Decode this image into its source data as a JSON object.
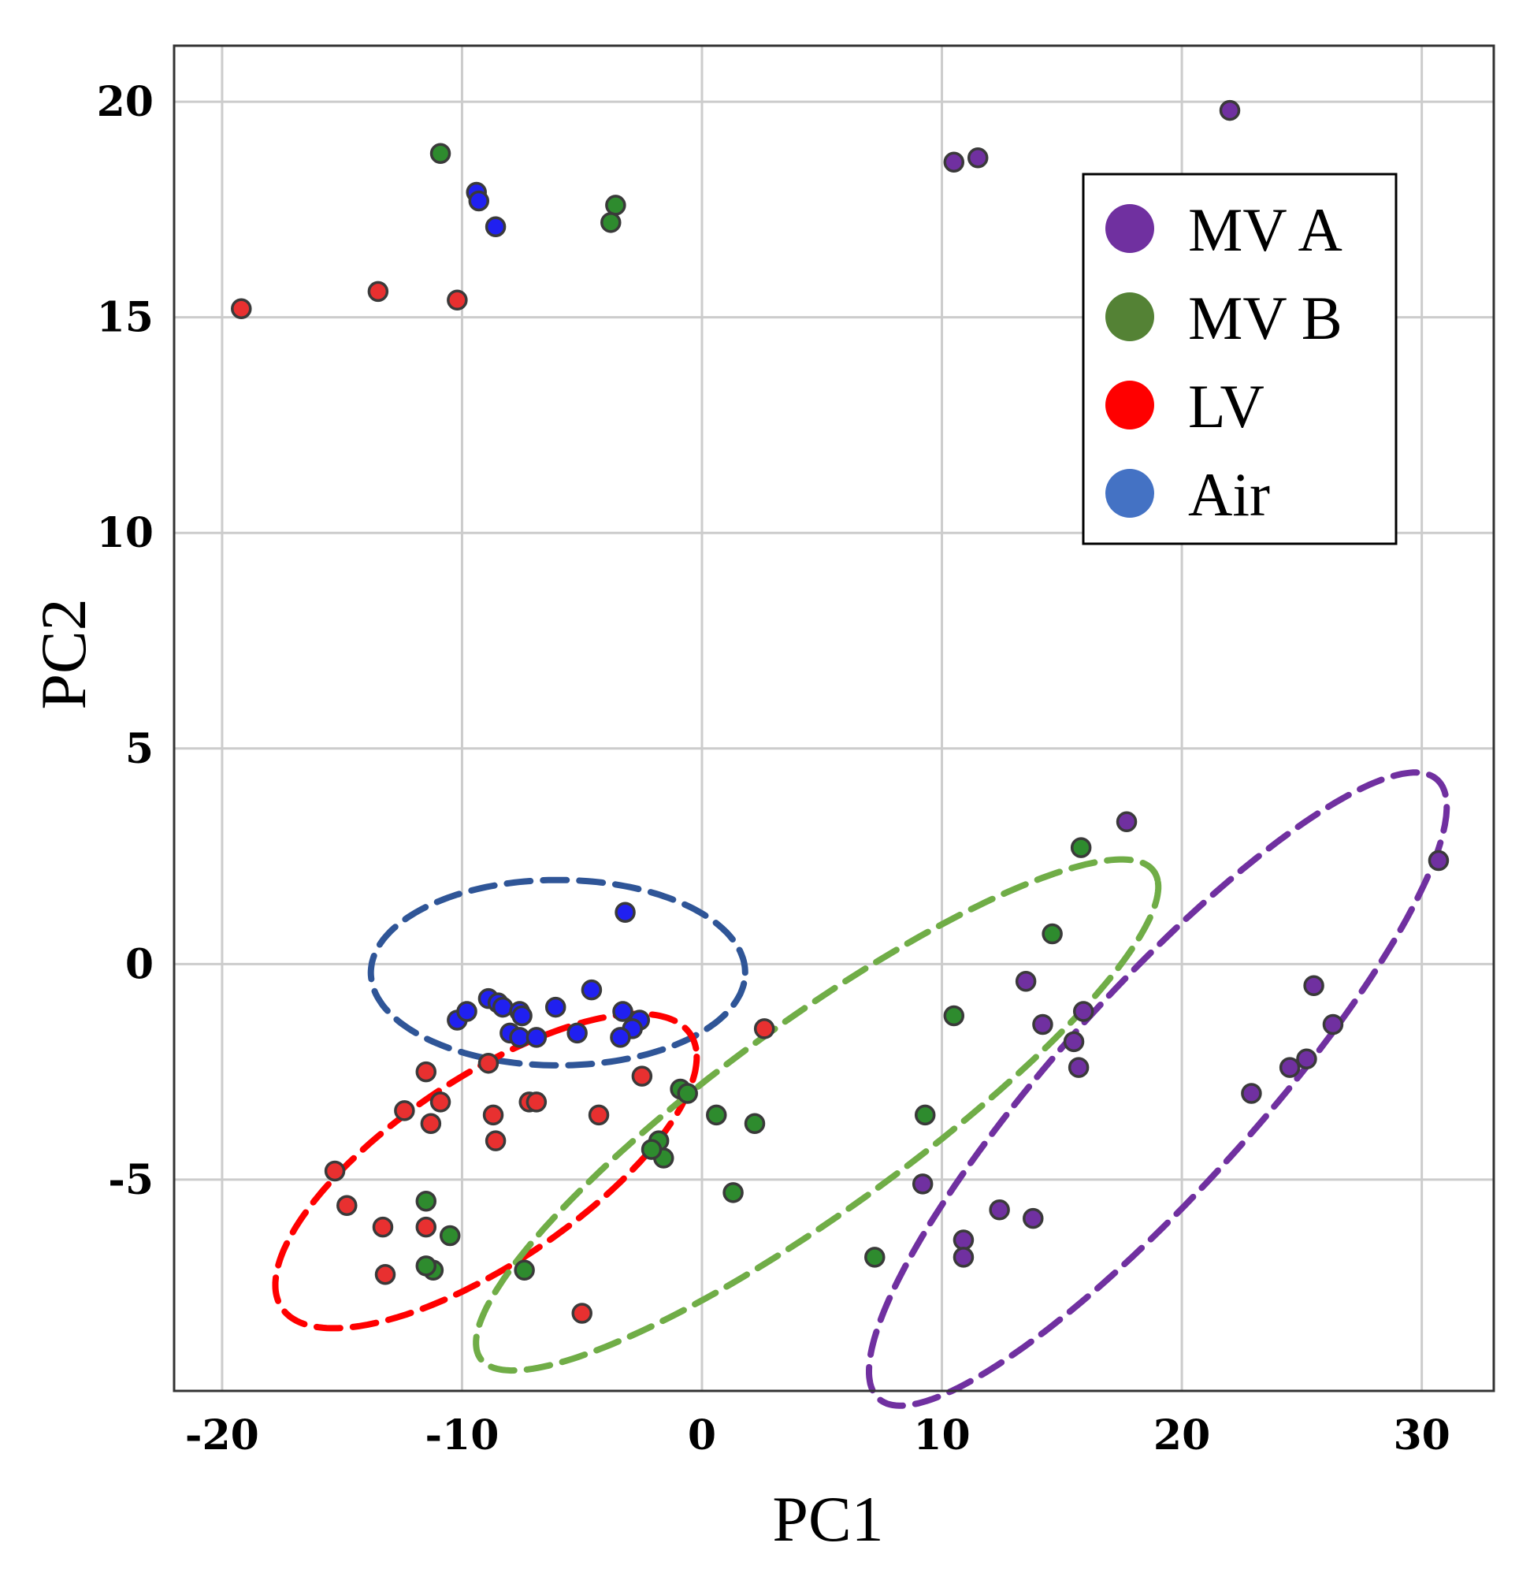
{
  "chart_data": {
    "type": "scatter",
    "title": "",
    "xlabel": "PC1",
    "ylabel": "PC2",
    "xlim": [
      -22,
      33
    ],
    "ylim": [
      -9.9,
      21.3
    ],
    "xticks": [
      -20,
      -10,
      0,
      10,
      20,
      30
    ],
    "yticks": [
      -5,
      0,
      5,
      10,
      15,
      20
    ],
    "grid": true,
    "legend_position": "top-right",
    "series": [
      {
        "name": "MV A",
        "color": "#7030a0",
        "legend_color": "#7030a0",
        "points": [
          [
            10.5,
            18.6
          ],
          [
            11.5,
            18.7
          ],
          [
            22,
            19.8
          ],
          [
            17.7,
            3.3
          ],
          [
            30.7,
            2.4
          ],
          [
            13.5,
            -0.4
          ],
          [
            14.2,
            -1.4
          ],
          [
            15.9,
            -1.1
          ],
          [
            15.5,
            -1.8
          ],
          [
            15.7,
            -2.4
          ],
          [
            25.5,
            -0.5
          ],
          [
            26.3,
            -1.4
          ],
          [
            25.2,
            -2.2
          ],
          [
            24.5,
            -2.4
          ],
          [
            22.9,
            -3.0
          ],
          [
            9.2,
            -5.1
          ],
          [
            10.9,
            -6.4
          ],
          [
            10.9,
            -6.8
          ],
          [
            12.4,
            -5.7
          ],
          [
            13.8,
            -5.9
          ]
        ]
      },
      {
        "name": "MV B",
        "color": "#2e8b2e",
        "legend_color": "#548235",
        "points": [
          [
            -10.9,
            18.8
          ],
          [
            -3.6,
            17.6
          ],
          [
            -3.8,
            17.2
          ],
          [
            15.8,
            2.7
          ],
          [
            14.6,
            0.7
          ],
          [
            10.5,
            -1.2
          ],
          [
            -0.9,
            -2.9
          ],
          [
            -0.6,
            -3.0
          ],
          [
            0.6,
            -3.5
          ],
          [
            2.2,
            -3.7
          ],
          [
            -1.8,
            -4.1
          ],
          [
            -1.6,
            -4.5
          ],
          [
            -2.1,
            -4.3
          ],
          [
            9.3,
            -3.5
          ],
          [
            1.3,
            -5.3
          ],
          [
            7.2,
            -6.8
          ],
          [
            -11.5,
            -5.5
          ],
          [
            -10.5,
            -6.3
          ],
          [
            -11.2,
            -7.1
          ],
          [
            -11.5,
            -7.0
          ],
          [
            -7.4,
            -7.1
          ]
        ]
      },
      {
        "name": "LV",
        "color": "#e83030",
        "legend_color": "#ff0000",
        "points": [
          [
            -19.2,
            15.2
          ],
          [
            -13.5,
            15.6
          ],
          [
            -10.2,
            15.4
          ],
          [
            -11.5,
            -2.5
          ],
          [
            -8.9,
            -2.3
          ],
          [
            -12.4,
            -3.4
          ],
          [
            -11.3,
            -3.7
          ],
          [
            -10.9,
            -3.2
          ],
          [
            -8.7,
            -3.5
          ],
          [
            -8.6,
            -4.1
          ],
          [
            -7.2,
            -3.2
          ],
          [
            -6.9,
            -3.2
          ],
          [
            -4.3,
            -3.5
          ],
          [
            -2.5,
            -2.6
          ],
          [
            2.6,
            -1.5
          ],
          [
            -15.3,
            -4.8
          ],
          [
            -14.8,
            -5.6
          ],
          [
            -13.3,
            -6.1
          ],
          [
            -11.5,
            -6.1
          ],
          [
            -13.2,
            -7.2
          ],
          [
            -5.0,
            -8.1
          ]
        ]
      },
      {
        "name": "Air",
        "color": "#2020f0",
        "legend_color": "#4472c4",
        "points": [
          [
            -9.4,
            17.9
          ],
          [
            -9.3,
            17.7
          ],
          [
            -8.6,
            17.1
          ],
          [
            -3.2,
            1.2
          ],
          [
            -8.9,
            -0.8
          ],
          [
            -8.5,
            -0.9
          ],
          [
            -8.3,
            -1.0
          ],
          [
            -10.2,
            -1.3
          ],
          [
            -9.8,
            -1.1
          ],
          [
            -7.6,
            -1.1
          ],
          [
            -7.5,
            -1.2
          ],
          [
            -6.1,
            -1.0
          ],
          [
            -4.6,
            -0.6
          ],
          [
            -3.3,
            -1.1
          ],
          [
            -2.6,
            -1.3
          ],
          [
            -2.9,
            -1.5
          ],
          [
            -3.4,
            -1.7
          ],
          [
            -5.2,
            -1.6
          ],
          [
            -8.0,
            -1.6
          ],
          [
            -7.6,
            -1.7
          ],
          [
            -6.9,
            -1.7
          ]
        ]
      }
    ],
    "confidence_ellipses": [
      {
        "series": "Air",
        "color": "#2f5597",
        "center": [
          -6.0,
          -0.2
        ],
        "semi_axes": [
          7.8,
          2.15
        ],
        "angle_deg": 0
      },
      {
        "series": "LV",
        "color": "#ff0000",
        "center": [
          -9.0,
          -4.8
        ],
        "semi_axes": [
          9.2,
          2.4
        ],
        "angle_deg": 18
      },
      {
        "series": "MV B",
        "color": "#70ad47",
        "center": [
          4.8,
          -3.5
        ],
        "semi_axes": [
          15.2,
          2.5
        ],
        "angle_deg": 21
      },
      {
        "series": "MV A",
        "color": "#7030a0",
        "center": [
          19.0,
          -2.9
        ],
        "semi_axes": [
          13.8,
          2.9
        ],
        "angle_deg": 30
      }
    ]
  }
}
